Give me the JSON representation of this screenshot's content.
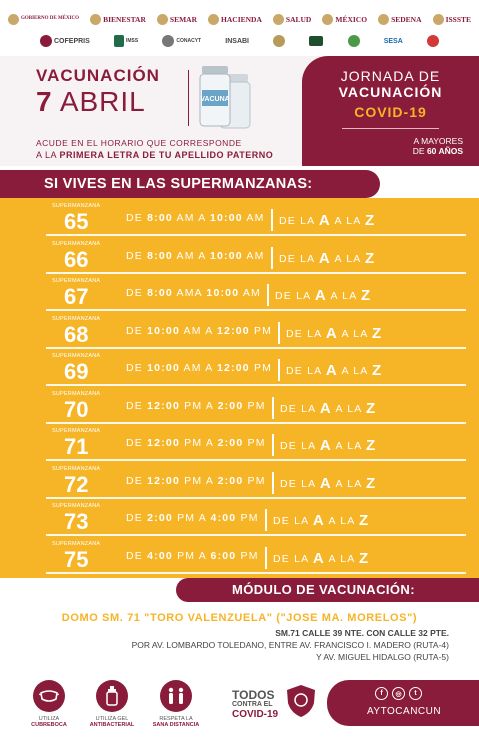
{
  "logos_top": [
    "GOBIERNO DE MÉXICO",
    "BIENESTAR",
    "SEMAR",
    "HACIENDA",
    "SALUD",
    "MÉXICO",
    "SEDENA",
    "ISSSTE"
  ],
  "logos_second": [
    "COFEPRIS",
    "IMSS",
    "CONACYT",
    "INSABI",
    "",
    "",
    "",
    "SESA",
    ""
  ],
  "header": {
    "title": "VACUNACIÓN",
    "date_num": "7",
    "date_month": "ABRIL",
    "acude": "ACUDE EN EL HORARIO QUE CORRESPONDE",
    "letra_prefix": "A LA",
    "letra_bold": "PRIMERA LETRA DE TU APELLIDO PATERNO",
    "vial_label": "VACUNA"
  },
  "jornada": {
    "line1": "JORNADA DE",
    "line2": "VACUNACIÓN",
    "line3": "COVID-19",
    "mayores_1": "A MAYORES",
    "mayores_de": "DE",
    "mayores_bold": "60 AÑOS"
  },
  "band_title": "SI VIVES EN LAS SUPERMANZANAS:",
  "sm_label": "SUPERMANZANA",
  "rows": [
    {
      "num": "65",
      "de": "DE",
      "start": "8:00",
      "start_ampm": "AM",
      "a": "A",
      "end": "10:00",
      "end_ampm": "AM",
      "de_la": "DE LA",
      "from": "A",
      "a_la": "A LA",
      "to": "Z"
    },
    {
      "num": "66",
      "de": "DE",
      "start": "8:00",
      "start_ampm": "AM",
      "a": "A",
      "end": "10:00",
      "end_ampm": "AM",
      "de_la": "DE LA",
      "from": "A",
      "a_la": "A LA",
      "to": "Z"
    },
    {
      "num": "67",
      "de": "DE",
      "start": "8:00",
      "start_ampm": "AMA",
      "a": "",
      "end": "10:00",
      "end_ampm": "AM",
      "de_la": "DE LA",
      "from": "A",
      "a_la": "A LA",
      "to": "Z"
    },
    {
      "num": "68",
      "de": "DE",
      "start": "10:00",
      "start_ampm": "AM",
      "a": "A",
      "end": "12:00",
      "end_ampm": "PM",
      "de_la": "DE LA",
      "from": "A",
      "a_la": "A LA",
      "to": "Z"
    },
    {
      "num": "69",
      "de": "DE",
      "start": "10:00",
      "start_ampm": "AM",
      "a": "A",
      "end": "12:00",
      "end_ampm": "PM",
      "de_la": "DE LA",
      "from": "A",
      "a_la": "A LA",
      "to": "Z"
    },
    {
      "num": "70",
      "de": "DE",
      "start": "12:00",
      "start_ampm": "PM",
      "a": "A",
      "end": "2:00",
      "end_ampm": "PM",
      "de_la": "DE LA",
      "from": "A",
      "a_la": "A LA",
      "to": "Z"
    },
    {
      "num": "71",
      "de": "DE",
      "start": "12:00",
      "start_ampm": "PM",
      "a": "A",
      "end": "2:00",
      "end_ampm": "PM",
      "de_la": "DE LA",
      "from": "A",
      "a_la": "A LA",
      "to": "Z"
    },
    {
      "num": "72",
      "de": "DE",
      "start": "12:00",
      "start_ampm": "PM",
      "a": "A",
      "end": "2:00",
      "end_ampm": "PM",
      "de_la": "DE LA",
      "from": "A",
      "a_la": "A LA",
      "to": "Z"
    },
    {
      "num": "73",
      "de": "DE",
      "start": "2:00",
      "start_ampm": "PM",
      "a": "A",
      "end": "4:00",
      "end_ampm": "PM",
      "de_la": "DE LA",
      "from": "A",
      "a_la": "A LA",
      "to": "Z"
    },
    {
      "num": "75",
      "de": "DE",
      "start": "4:00",
      "start_ampm": "PM",
      "a": "A",
      "end": "6:00",
      "end_ampm": "PM",
      "de_la": "DE LA",
      "from": "A",
      "a_la": "A LA",
      "to": "Z"
    }
  ],
  "modulo_title": "MÓDULO DE VACUNACIÓN:",
  "domo": "DOMO SM. 71 \"TORO VALENZUELA\" (\"JOSE MA. MORELOS\")",
  "address": {
    "line1": "SM.71 CALLE 39 NTE. CON CALLE 32 PTE.",
    "line2": "POR AV. LOMBARDO TOLEDANO, ENTRE AV. FRANCISCO I. MADERO (RUTA-4)",
    "line3": "Y AV. MIGUEL HIDALGO (RUTA-5)"
  },
  "measures": [
    {
      "pre": "UTILIZA",
      "bold": "CUBREBOCA",
      "icon": "mask-icon"
    },
    {
      "pre": "UTILIZA GEL",
      "bold": "ANTIBACTERIAL",
      "icon": "gel-icon"
    },
    {
      "pre": "RESPETA LA",
      "bold": "SANA DISTANCIA",
      "icon": "distance-icon"
    }
  ],
  "todos": {
    "line1": "TODOS",
    "line2": "CONTRA EL",
    "line3": "COVID-19"
  },
  "social": {
    "handle": "AYTOCANCUN",
    "icons": [
      "facebook-icon",
      "instagram-icon",
      "twitter-icon"
    ]
  },
  "colors": {
    "maroon": "#8a1c3b",
    "yellow": "#f6b427",
    "gray": "#4a4a4a"
  }
}
